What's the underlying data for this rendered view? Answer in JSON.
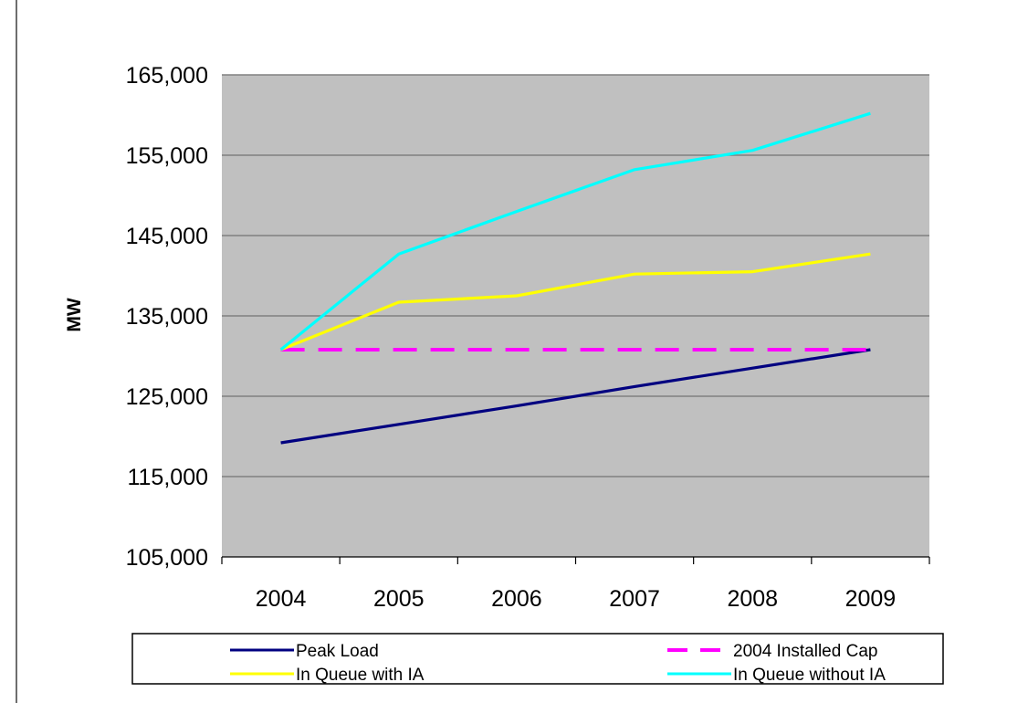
{
  "chart_data": {
    "type": "line",
    "title": "",
    "xlabel": "",
    "ylabel": "MW",
    "categories": [
      "2004",
      "2005",
      "2006",
      "2007",
      "2008",
      "2009"
    ],
    "ylim": [
      105000,
      165000
    ],
    "yticks": [
      105000,
      115000,
      125000,
      135000,
      145000,
      155000,
      165000
    ],
    "ytick_labels": [
      "105,000",
      "115,000",
      "125,000",
      "135,000",
      "145,000",
      "155,000",
      "165,000"
    ],
    "grid": true,
    "plot_background": "#c0c0c0",
    "legend_position": "bottom",
    "series": [
      {
        "name": "Peak Load",
        "color": "#000080",
        "dash": false,
        "values": [
          119200,
          121500,
          123800,
          126200,
          128500,
          130800
        ]
      },
      {
        "name": "2004 Installed Cap",
        "color": "#ff00ff",
        "dash": true,
        "values": [
          130800,
          130800,
          130800,
          130800,
          130800,
          130800
        ]
      },
      {
        "name": "In Queue with IA",
        "color": "#ffff00",
        "dash": false,
        "values": [
          130800,
          136700,
          137500,
          140200,
          140500,
          142700
        ]
      },
      {
        "name": "In Queue without IA",
        "color": "#00ffff",
        "dash": false,
        "values": [
          130800,
          142700,
          148000,
          153200,
          155600,
          160200
        ]
      }
    ]
  }
}
